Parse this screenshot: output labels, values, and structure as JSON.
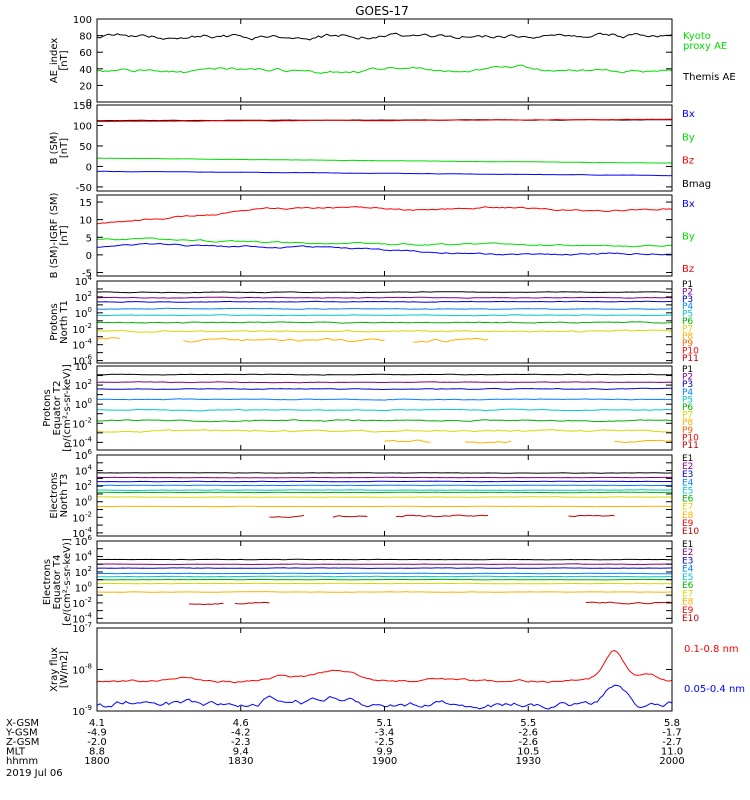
{
  "chart_data": {
    "type": "line",
    "title": "GOES-17",
    "x_range": [
      "1800",
      "2000"
    ],
    "x_ticks": [
      "1800",
      "1830",
      "1900",
      "1930",
      "2000"
    ],
    "extra_rows": [
      {
        "label": "X-GSM",
        "values": [
          "4.1",
          "4.6",
          "5.1",
          "5.5",
          "5.8"
        ]
      },
      {
        "label": "Y-GSM",
        "values": [
          "-4.9",
          "-4.2",
          "-3.4",
          "-2.6",
          "-1.7"
        ]
      },
      {
        "label": "Z-GSM",
        "values": [
          "-2.0",
          "-2.3",
          "-2.5",
          "-2.6",
          "-2.7"
        ]
      },
      {
        "label": "MLT",
        "values": [
          "8.8",
          "9.4",
          "9.9",
          "10.5",
          "11.0"
        ]
      },
      {
        "label": "hhmm",
        "values": [
          "1800",
          "1830",
          "1900",
          "1930",
          "2000"
        ]
      }
    ],
    "date": "2019 Jul 06",
    "panels": [
      {
        "id": "ae",
        "ylabel": [
          "AE_index",
          "[nT]"
        ],
        "scale": "linear",
        "ylim": [
          0,
          100
        ],
        "ticks": [
          "0",
          "20",
          "40",
          "60",
          "80",
          "100"
        ],
        "legend": [
          [
            "Kyoto",
            "#00dd00"
          ],
          [
            "proxy AE",
            "#00dd00"
          ],
          [
            "Themis AE",
            "#000000"
          ]
        ],
        "series": [
          {
            "color": "#000000",
            "style": "noise",
            "base": 80,
            "amp": 3.5,
            "seed": 3
          },
          {
            "color": "#00dd00",
            "style": "noise",
            "base": 37,
            "amp": 2.5,
            "seed": 7,
            "bumps": [
              [
                0.22,
                4,
                0.04
              ],
              [
                0.3,
                3,
                0.03
              ],
              [
                0.52,
                5,
                0.05
              ],
              [
                0.72,
                7,
                0.04
              ]
            ]
          }
        ]
      },
      {
        "id": "bsm",
        "ylabel": [
          "B (SM)",
          "[nT]"
        ],
        "scale": "linear",
        "ylim": [
          -60,
          150
        ],
        "ticks": [
          "-50",
          "0",
          "50",
          "100",
          "150"
        ],
        "legend": [
          [
            "Bx",
            "#0000ff"
          ],
          [
            "By",
            "#00dd00"
          ],
          [
            "Bz",
            "#ff0000"
          ],
          [
            "Bmag",
            "#000000"
          ]
        ],
        "series": [
          {
            "color": "#000000",
            "style": "ramp",
            "v0": 112,
            "v1": 114,
            "amp": 0.6,
            "seed": 11
          },
          {
            "color": "#ff0000",
            "style": "ramp",
            "v0": 110,
            "v1": 115,
            "amp": 0.6,
            "seed": 12
          },
          {
            "color": "#00dd00",
            "style": "ramp",
            "v0": 20,
            "v1": 8,
            "amp": 0.6,
            "seed": 13
          },
          {
            "color": "#0000ff",
            "style": "ramp",
            "v0": -12,
            "v1": -22,
            "amp": 0.6,
            "seed": 14
          }
        ]
      },
      {
        "id": "bigrf",
        "ylabel": [
          "B (SM)-IGRF (SM)",
          "[nT]"
        ],
        "scale": "linear",
        "ylim": [
          -6,
          17
        ],
        "ticks": [
          "-5",
          "0",
          "5",
          "10",
          "15"
        ],
        "legend": [
          [
            "Bx",
            "#0000ff"
          ],
          [
            "By",
            "#00dd00"
          ],
          [
            "Bz",
            "#ff0000"
          ]
        ],
        "series": [
          {
            "color": "#ff0000",
            "style": "knots",
            "amp": 0.35,
            "seed": 21,
            "knots": [
              [
                0,
                9
              ],
              [
                0.08,
                10
              ],
              [
                0.2,
                11.5
              ],
              [
                0.3,
                13
              ],
              [
                0.45,
                13.5
              ],
              [
                0.55,
                12.5
              ],
              [
                0.7,
                13.5
              ],
              [
                0.85,
                12.5
              ],
              [
                1,
                13
              ]
            ]
          },
          {
            "color": "#00dd00",
            "style": "knots",
            "amp": 0.3,
            "seed": 22,
            "knots": [
              [
                0,
                4.5
              ],
              [
                0.1,
                4.3
              ],
              [
                0.3,
                3.5
              ],
              [
                0.5,
                3
              ],
              [
                0.7,
                3
              ],
              [
                1,
                2.5
              ]
            ]
          },
          {
            "color": "#0000ff",
            "style": "knots",
            "amp": 0.3,
            "seed": 23,
            "knots": [
              [
                0,
                2.3
              ],
              [
                0.05,
                3.2
              ],
              [
                0.2,
                2.5
              ],
              [
                0.4,
                2
              ],
              [
                0.55,
                1
              ],
              [
                0.7,
                0
              ],
              [
                0.85,
                0.3
              ],
              [
                1,
                0.5
              ]
            ]
          }
        ]
      },
      {
        "id": "pn",
        "ylabel": [
          "Protons",
          "North T1"
        ],
        "scale": "log",
        "ylim": [
          -6.3,
          4
        ],
        "ticks_exp": [
          -6,
          -4,
          -2,
          0,
          2,
          4
        ],
        "legend": [
          [
            "P1",
            "#000000"
          ],
          [
            "P2",
            "#800080"
          ],
          [
            "P3",
            "#0000cc"
          ],
          [
            "P4",
            "#0080ff"
          ],
          [
            "P5",
            "#00c8c8"
          ],
          [
            "P6",
            "#00b000"
          ],
          [
            "P7",
            "#d8d800"
          ],
          [
            "P8",
            "#ffb000"
          ],
          [
            "P9",
            "#ff6000"
          ],
          [
            "P10",
            "#ff0000"
          ],
          [
            "P11",
            "#c00000"
          ]
        ],
        "series": [
          {
            "color": "#000000",
            "style": "flat",
            "value": 2.6,
            "amp": 0.05,
            "seed": 31
          },
          {
            "color": "#800080",
            "style": "flat",
            "value": 1.9,
            "amp": 0.05,
            "seed": 32
          },
          {
            "color": "#0000cc",
            "style": "flat",
            "value": 1.4,
            "amp": 0.05,
            "seed": 33
          },
          {
            "color": "#0080ff",
            "style": "flat",
            "value": 0.5,
            "amp": 0.05,
            "seed": 34
          },
          {
            "color": "#00c8c8",
            "style": "flat",
            "value": -0.3,
            "amp": 0.05,
            "seed": 35
          },
          {
            "color": "#00b000",
            "style": "flat",
            "value": -1.2,
            "amp": 0.08,
            "seed": 36
          },
          {
            "color": "#d8d800",
            "style": "flat",
            "value": -2.3,
            "amp": 0.12,
            "seed": 37
          },
          {
            "color": "#ffb000",
            "style": "segments",
            "value": -3.4,
            "amp": 0.25,
            "seed": 38,
            "segments": [
              [
                0,
                0.04
              ],
              [
                0.15,
                0.5
              ],
              [
                0.55,
                0.68
              ]
            ]
          }
        ]
      },
      {
        "id": "pe",
        "ylabel": [
          "Protons",
          "Equator T2",
          "[p/(cm²-s-sr-keV)]"
        ],
        "scale": "log",
        "ylim": [
          -4.8,
          4
        ],
        "ticks_exp": [
          -4,
          -2,
          0,
          2,
          4
        ],
        "legend": [
          [
            "P1",
            "#000000"
          ],
          [
            "P2",
            "#800080"
          ],
          [
            "P3",
            "#0000cc"
          ],
          [
            "P4",
            "#0080ff"
          ],
          [
            "P5",
            "#00c8c8"
          ],
          [
            "P6",
            "#00b000"
          ],
          [
            "P7",
            "#d8d800"
          ],
          [
            "P8",
            "#ffb000"
          ],
          [
            "P9",
            "#ff6000"
          ],
          [
            "P10",
            "#ff0000"
          ],
          [
            "P11",
            "#c00000"
          ]
        ],
        "series": [
          {
            "color": "#000000",
            "style": "flat",
            "value": 3.1,
            "amp": 0.04,
            "seed": 41
          },
          {
            "color": "#800080",
            "style": "flat",
            "value": 2.3,
            "amp": 0.04,
            "seed": 42
          },
          {
            "color": "#0000cc",
            "style": "flat",
            "value": 1.6,
            "amp": 0.05,
            "seed": 43
          },
          {
            "color": "#0080ff",
            "style": "flat",
            "value": 0.5,
            "amp": 0.05,
            "seed": 44
          },
          {
            "color": "#00c8c8",
            "style": "flat",
            "value": -0.6,
            "amp": 0.06,
            "seed": 45
          },
          {
            "color": "#00b000",
            "style": "flat",
            "value": -1.7,
            "amp": 0.08,
            "seed": 46
          },
          {
            "color": "#d8d800",
            "style": "flat",
            "value": -2.8,
            "amp": 0.12,
            "seed": 47
          },
          {
            "color": "#ffb000",
            "style": "segments",
            "value": -3.9,
            "amp": 0.15,
            "seed": 48,
            "segments": [
              [
                0.5,
                0.58
              ],
              [
                0.64,
                0.72
              ],
              [
                0.9,
                1.0
              ]
            ]
          }
        ]
      },
      {
        "id": "en",
        "ylabel": [
          "Electrons",
          "North T3"
        ],
        "scale": "log",
        "ylim": [
          -4.4,
          6
        ],
        "ticks_exp": [
          -4,
          -2,
          0,
          2,
          4,
          6
        ],
        "legend": [
          [
            "E1",
            "#000000"
          ],
          [
            "E2",
            "#800080"
          ],
          [
            "E3",
            "#0000cc"
          ],
          [
            "E4",
            "#0080ff"
          ],
          [
            "E5",
            "#00c8c8"
          ],
          [
            "E6",
            "#00b000"
          ],
          [
            "E7",
            "#d8d800"
          ],
          [
            "E8",
            "#ffb000"
          ],
          [
            "E9",
            "#ff0000"
          ],
          [
            "E10",
            "#c00000"
          ]
        ],
        "series": [
          {
            "color": "#000000",
            "style": "flat",
            "value": 3.7,
            "amp": 0.03,
            "seed": 51
          },
          {
            "color": "#800080",
            "style": "flat",
            "value": 3.1,
            "amp": 0.03,
            "seed": 52
          },
          {
            "color": "#0000cc",
            "style": "flat",
            "value": 2.6,
            "amp": 0.03,
            "seed": 53
          },
          {
            "color": "#0080ff",
            "style": "flat",
            "value": 2.1,
            "amp": 0.03,
            "seed": 54
          },
          {
            "color": "#00c8c8",
            "style": "flat",
            "value": 1.5,
            "amp": 0.03,
            "seed": 55
          },
          {
            "color": "#00b000",
            "style": "flat",
            "value": 1.2,
            "amp": 0.03,
            "seed": 56
          },
          {
            "color": "#d8d800",
            "style": "flat",
            "value": 0.6,
            "amp": 0.03,
            "seed": 57
          },
          {
            "color": "#ffb000",
            "style": "flat",
            "value": -0.6,
            "amp": 0.03,
            "seed": 58
          },
          {
            "color": "#c00000",
            "style": "segments",
            "value": -1.8,
            "amp": 0.15,
            "seed": 59,
            "segments": [
              [
                0.3,
                0.36
              ],
              [
                0.41,
                0.47
              ],
              [
                0.52,
                0.68
              ],
              [
                0.82,
                0.9
              ]
            ]
          }
        ]
      },
      {
        "id": "ee",
        "ylabel": [
          "Electrons",
          "Equator T4",
          "[e/(cm²-s-sr-keV)]"
        ],
        "scale": "log",
        "ylim": [
          -4.6,
          6
        ],
        "ticks_exp": [
          -4,
          -2,
          0,
          2,
          4,
          6
        ],
        "legend": [
          [
            "E1",
            "#000000"
          ],
          [
            "E2",
            "#800080"
          ],
          [
            "E3",
            "#0000cc"
          ],
          [
            "E4",
            "#0080ff"
          ],
          [
            "E5",
            "#00c8c8"
          ],
          [
            "E6",
            "#00b000"
          ],
          [
            "E7",
            "#d8d800"
          ],
          [
            "E8",
            "#ffb000"
          ],
          [
            "E9",
            "#ff0000"
          ],
          [
            "E10",
            "#c00000"
          ]
        ],
        "series": [
          {
            "color": "#000000",
            "style": "flat",
            "value": 3.6,
            "amp": 0.03,
            "seed": 61
          },
          {
            "color": "#800080",
            "style": "flat",
            "value": 3.0,
            "amp": 0.03,
            "seed": 62
          },
          {
            "color": "#0000cc",
            "style": "flat",
            "value": 2.5,
            "amp": 0.03,
            "seed": 63
          },
          {
            "color": "#0080ff",
            "style": "flat",
            "value": 1.8,
            "amp": 0.03,
            "seed": 64
          },
          {
            "color": "#00c8c8",
            "style": "flat",
            "value": 1.4,
            "amp": 0.03,
            "seed": 65
          },
          {
            "color": "#00b000",
            "style": "flat",
            "value": 1.0,
            "amp": 0.03,
            "seed": 66
          },
          {
            "color": "#d8d800",
            "style": "flat",
            "value": 0.5,
            "amp": 0.03,
            "seed": 67
          },
          {
            "color": "#ffb000",
            "style": "flat",
            "value": -0.6,
            "amp": 0.03,
            "seed": 68
          },
          {
            "color": "#c00000",
            "style": "segments",
            "value": -2.0,
            "amp": 0.15,
            "seed": 69,
            "segments": [
              [
                0.16,
                0.22
              ],
              [
                0.24,
                0.3
              ],
              [
                0.85,
                1.0
              ]
            ]
          }
        ]
      },
      {
        "id": "xray",
        "ylabel": [
          "Xray flux",
          "[W/m2]"
        ],
        "scale": "log",
        "ylim": [
          -9,
          -7
        ],
        "ticks_exp": [
          -9,
          -8,
          -7
        ],
        "legend": [
          [
            "0.1-0.8 nm",
            "#ff0000"
          ],
          [
            "0.05-0.4 nm",
            "#0000ff"
          ]
        ],
        "series": [
          {
            "color": "#ff0000",
            "style": "noise",
            "base": -8.28,
            "amp": 0.04,
            "seed": 71,
            "bumps": [
              [
                0.15,
                0.08,
                0.03
              ],
              [
                0.32,
                0.12,
                0.04
              ],
              [
                0.42,
                0.26,
                0.05
              ],
              [
                0.58,
                0.05,
                0.03
              ],
              [
                0.9,
                0.72,
                0.025
              ],
              [
                0.96,
                0.15,
                0.02
              ]
            ]
          },
          {
            "color": "#0000ff",
            "style": "noise",
            "base": -8.85,
            "amp": 0.1,
            "seed": 72,
            "bumps": [
              [
                0.1,
                0.1,
                0.05
              ],
              [
                0.32,
                0.18,
                0.05
              ],
              [
                0.42,
                0.2,
                0.04
              ],
              [
                0.9,
                0.55,
                0.025
              ]
            ]
          }
        ]
      }
    ]
  }
}
